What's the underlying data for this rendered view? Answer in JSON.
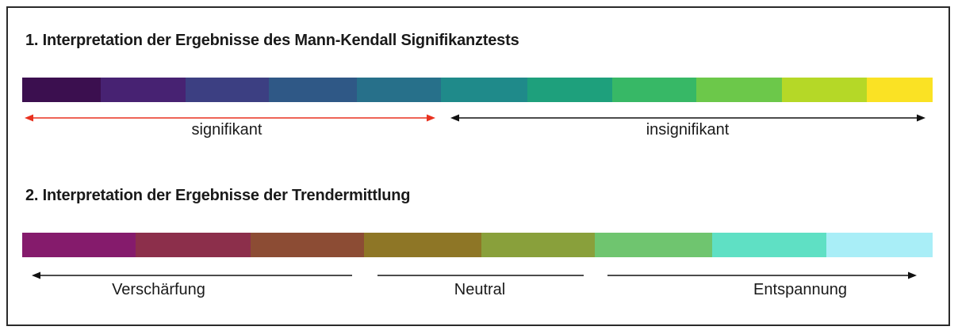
{
  "section1": {
    "title": "1. Interpretation der Ergebnisse des Mann-Kendall Signifikanztests",
    "colors": [
      "#3b0f4f",
      "#472272",
      "#3c3f82",
      "#2f5886",
      "#27708a",
      "#1f8a8a",
      "#1ea07c",
      "#37b866",
      "#6cc84a",
      "#b5d827",
      "#fae224"
    ],
    "labels": {
      "significant": "signifikant",
      "insignificant": "insignifikant"
    },
    "arrow_colors": {
      "significant": "#e8311f",
      "insignificant": "#111111"
    }
  },
  "section2": {
    "title": "2. Interpretation der Ergebnisse der Trendermittlung",
    "colors": [
      "#851b6c",
      "#8c2f4b",
      "#8c4c34",
      "#8e7626",
      "#89a03b",
      "#6fc56f",
      "#5fe0c4",
      "#a9eef7"
    ],
    "labels": {
      "left": "Verschärfung",
      "middle": "Neutral",
      "right": "Entspannung"
    }
  }
}
